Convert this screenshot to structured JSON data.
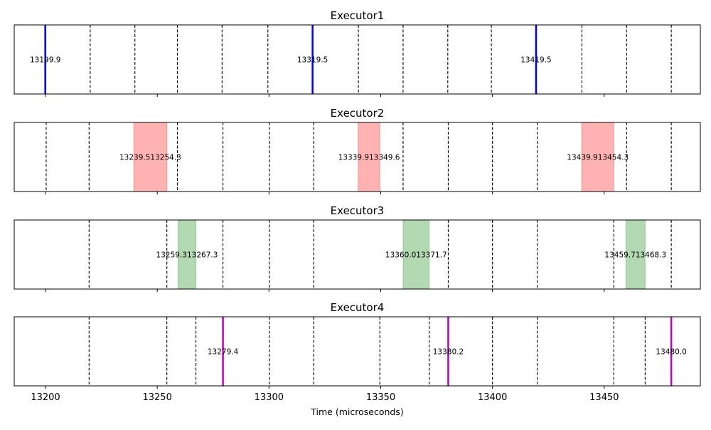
{
  "chart_data": {
    "type": "timeline",
    "xlabel": "Time (microseconds)",
    "xlim": [
      13186,
      13493
    ],
    "xticks": [
      13200,
      13250,
      13300,
      13350,
      13400,
      13450
    ],
    "panels": [
      {
        "title": "Executor1",
        "dashed_lines": [
          13220,
          13240,
          13259,
          13279,
          13299.5,
          13340,
          13360,
          13380,
          13399.5,
          13440,
          13460,
          13480
        ],
        "events": [
          {
            "kind": "line",
            "x": 13199.9,
            "label": "13199.9",
            "color": "#0000ff"
          },
          {
            "kind": "line",
            "x": 13319.5,
            "label": "13319.5",
            "color": "#0000ff"
          },
          {
            "kind": "line",
            "x": 13419.5,
            "label": "13419.5",
            "color": "#0000ff"
          }
        ]
      },
      {
        "title": "Executor2",
        "dashed_lines": [
          13200.3,
          13219.5,
          13259,
          13279.4,
          13300.2,
          13320,
          13360,
          13380.2,
          13400,
          13420,
          13460,
          13480
        ],
        "events": [
          {
            "kind": "span",
            "start": 13239.5,
            "end": 13254.3,
            "label": "13239.513254.3",
            "color": "#ff0000"
          },
          {
            "kind": "span",
            "start": 13339.9,
            "end": 13349.6,
            "label": "13339.913349.6",
            "color": "#ff0000"
          },
          {
            "kind": "span",
            "start": 13439.9,
            "end": 13454.3,
            "label": "13439.913454.3",
            "color": "#ff0000"
          }
        ]
      },
      {
        "title": "Executor3",
        "dashed_lines": [
          13219.5,
          13254.3,
          13279.4,
          13300.2,
          13320,
          13380.2,
          13400,
          13420,
          13454.3,
          13480
        ],
        "events": [
          {
            "kind": "span",
            "start": 13259.3,
            "end": 13267.3,
            "label": "13259.313267.3",
            "color": "#008000"
          },
          {
            "kind": "span",
            "start": 13360.0,
            "end": 13371.7,
            "label": "13360.013371.7",
            "color": "#008000"
          },
          {
            "kind": "span",
            "start": 13459.7,
            "end": 13468.3,
            "label": "13459.713468.3",
            "color": "#008000"
          }
        ]
      },
      {
        "title": "Executor4",
        "dashed_lines": [
          13219.5,
          13254.3,
          13267.3,
          13300.2,
          13320,
          13349.6,
          13371.7,
          13400,
          13420,
          13454.3,
          13468.3
        ],
        "events": [
          {
            "kind": "line",
            "x": 13279.4,
            "label": "13279.4",
            "color": "#c000c0"
          },
          {
            "kind": "line",
            "x": 13380.2,
            "label": "13380.2",
            "color": "#c000c0"
          },
          {
            "kind": "line",
            "x": 13480.0,
            "label": "13480.0",
            "color": "#c000c0"
          }
        ]
      }
    ]
  }
}
